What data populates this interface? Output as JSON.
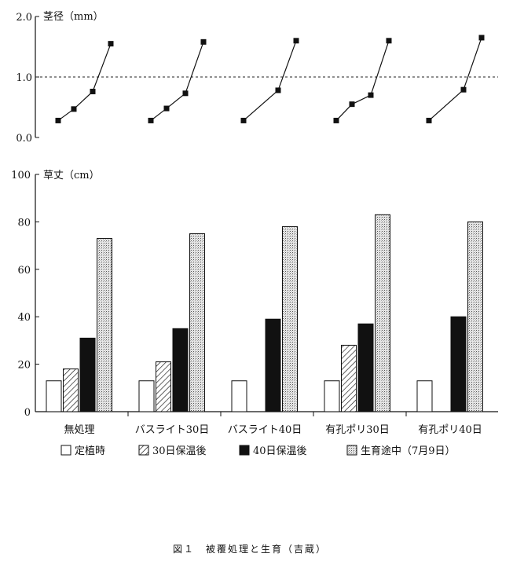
{
  "chart_data": [
    {
      "type": "line",
      "title": "",
      "ylabel": "茎径（mm）",
      "ylim": [
        0,
        2.0
      ],
      "y_ticks": [
        "0.0",
        "1.0",
        "2.0"
      ],
      "y_tick_values": [
        0,
        1.0,
        2.0
      ],
      "reference_line": 1.0,
      "grid": false,
      "categories": [
        "無処理",
        "バスライト30日",
        "バスライト40日",
        "有孔ポリ30日",
        "有孔ポリ40日"
      ],
      "groups": [
        {
          "category": "無処理",
          "values": [
            0.28,
            0.47,
            0.76,
            1.55
          ]
        },
        {
          "category": "バスライト30日",
          "values": [
            0.28,
            0.48,
            0.73,
            1.58
          ]
        },
        {
          "category": "バスライト40日",
          "values": [
            0.28,
            null,
            0.78,
            1.6
          ]
        },
        {
          "category": "有孔ポリ30日",
          "values": [
            0.28,
            0.55,
            0.7,
            1.6
          ]
        },
        {
          "category": "有孔ポリ40日",
          "values": [
            0.28,
            null,
            0.79,
            1.65
          ]
        }
      ]
    },
    {
      "type": "bar",
      "title": "",
      "ylabel": "草丈（cm）",
      "ylim": [
        0,
        100
      ],
      "y_ticks": [
        "0",
        "20",
        "40",
        "60",
        "80",
        "100"
      ],
      "y_tick_values": [
        0,
        20,
        40,
        60,
        80,
        100
      ],
      "grid": false,
      "legend_position": "bottom",
      "categories": [
        "無処理",
        "バスライト30日",
        "バスライト40日",
        "有孔ポリ30日",
        "有孔ポリ40日"
      ],
      "series": [
        {
          "name": "定植時",
          "pattern": "white",
          "values": [
            13,
            13,
            13,
            13,
            13
          ]
        },
        {
          "name": "30日保温後",
          "pattern": "hatch",
          "values": [
            18,
            21,
            null,
            28,
            null
          ]
        },
        {
          "name": "40日保温後",
          "pattern": "black",
          "values": [
            31,
            35,
            39,
            37,
            40
          ]
        },
        {
          "name": "生育途中（7月9日）",
          "pattern": "dots",
          "values": [
            73,
            75,
            78,
            83,
            80
          ]
        }
      ]
    }
  ],
  "caption": "図１　被覆処理と生育（吉蔵）"
}
